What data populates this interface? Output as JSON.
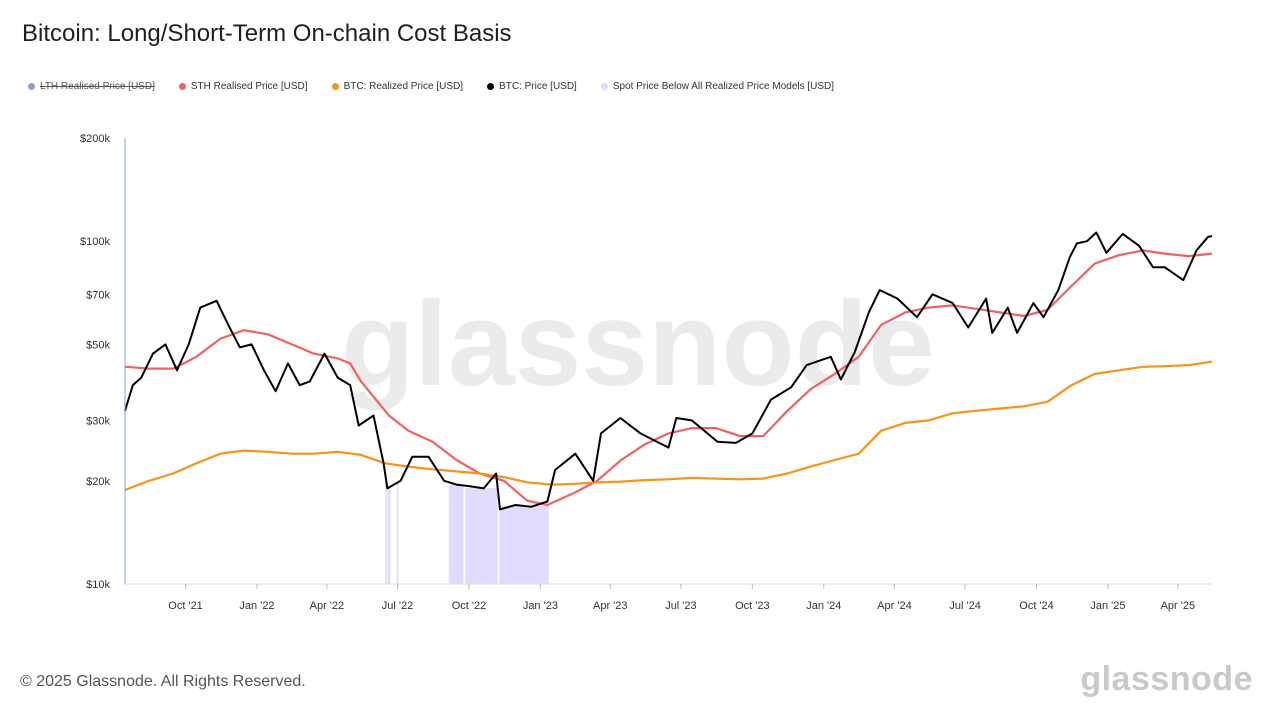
{
  "title": "Bitcoin: Long/Short-Term On-chain Cost Basis",
  "footer": "© 2025 Glassnode. All Rights Reserved.",
  "brand": "glassnode",
  "watermark": "glassnode",
  "legend": [
    {
      "label": "LTH Realised Price [USD]",
      "color": "#8b9ae0",
      "disabled": true
    },
    {
      "label": "STH Realised Price [USD]",
      "color": "#f06262",
      "disabled": false
    },
    {
      "label": "BTC: Realized Price [USD]",
      "color": "#f7931a",
      "disabled": false
    },
    {
      "label": "BTC: Price [USD]",
      "color": "#000000",
      "disabled": false
    },
    {
      "label": "Spot Price Below All Realized Price Models [USD]",
      "color": "#e3dbff",
      "disabled": false
    }
  ],
  "chart_data": {
    "type": "line",
    "yscale": "log",
    "ylim": [
      10000,
      200000
    ],
    "xlim": [
      "2021-07-15",
      "2025-05-15"
    ],
    "y_ticks": [
      {
        "value": 10000,
        "label": "$10k"
      },
      {
        "value": 20000,
        "label": "$20k"
      },
      {
        "value": 30000,
        "label": "$30k"
      },
      {
        "value": 50000,
        "label": "$50k"
      },
      {
        "value": 70000,
        "label": "$70k"
      },
      {
        "value": 100000,
        "label": "$100k"
      },
      {
        "value": 200000,
        "label": "$200k"
      }
    ],
    "x_ticks": [
      {
        "date": "2021-10-01",
        "label": "Oct '21"
      },
      {
        "date": "2022-01-01",
        "label": "Jan '22"
      },
      {
        "date": "2022-04-01",
        "label": "Apr '22"
      },
      {
        "date": "2022-07-01",
        "label": "Jul '22"
      },
      {
        "date": "2022-10-01",
        "label": "Oct '22"
      },
      {
        "date": "2023-01-01",
        "label": "Jan '23"
      },
      {
        "date": "2023-04-01",
        "label": "Apr '23"
      },
      {
        "date": "2023-07-01",
        "label": "Jul '23"
      },
      {
        "date": "2023-10-01",
        "label": "Oct '23"
      },
      {
        "date": "2024-01-01",
        "label": "Jan '24"
      },
      {
        "date": "2024-04-01",
        "label": "Apr '24"
      },
      {
        "date": "2024-07-01",
        "label": "Jul '24"
      },
      {
        "date": "2024-10-01",
        "label": "Oct '24"
      },
      {
        "date": "2025-01-01",
        "label": "Jan '25"
      },
      {
        "date": "2025-04-01",
        "label": "Apr '25"
      }
    ],
    "series": [
      {
        "name": "STH Realised Price [USD]",
        "color": "#f06262",
        "points": [
          [
            "2021-07-15",
            43000
          ],
          [
            "2021-08-15",
            42500
          ],
          [
            "2021-09-15",
            42500
          ],
          [
            "2021-10-15",
            46000
          ],
          [
            "2021-11-15",
            52000
          ],
          [
            "2021-12-15",
            55000
          ],
          [
            "2022-01-15",
            53500
          ],
          [
            "2022-02-15",
            50000
          ],
          [
            "2022-03-15",
            47000
          ],
          [
            "2022-04-15",
            45500
          ],
          [
            "2022-05-01",
            44000
          ],
          [
            "2022-05-15",
            39000
          ],
          [
            "2022-06-01",
            35000
          ],
          [
            "2022-06-20",
            31000
          ],
          [
            "2022-07-15",
            28000
          ],
          [
            "2022-08-15",
            26000
          ],
          [
            "2022-09-15",
            23000
          ],
          [
            "2022-10-15",
            21000
          ],
          [
            "2022-11-15",
            20000
          ],
          [
            "2022-12-15",
            17500
          ],
          [
            "2023-01-10",
            17000
          ],
          [
            "2023-02-15",
            18500
          ],
          [
            "2023-03-15",
            20000
          ],
          [
            "2023-04-15",
            23000
          ],
          [
            "2023-05-15",
            25500
          ],
          [
            "2023-06-15",
            27500
          ],
          [
            "2023-07-15",
            28500
          ],
          [
            "2023-08-15",
            28500
          ],
          [
            "2023-09-15",
            27000
          ],
          [
            "2023-10-15",
            27000
          ],
          [
            "2023-11-15",
            32000
          ],
          [
            "2023-12-15",
            37000
          ],
          [
            "2024-01-15",
            41000
          ],
          [
            "2024-02-15",
            46000
          ],
          [
            "2024-03-15",
            57000
          ],
          [
            "2024-04-15",
            62000
          ],
          [
            "2024-05-15",
            64000
          ],
          [
            "2024-06-15",
            65000
          ],
          [
            "2024-07-15",
            63500
          ],
          [
            "2024-08-15",
            62000
          ],
          [
            "2024-09-15",
            60500
          ],
          [
            "2024-10-15",
            63000
          ],
          [
            "2024-11-15",
            74000
          ],
          [
            "2024-12-15",
            86000
          ],
          [
            "2025-01-15",
            91000
          ],
          [
            "2025-02-15",
            94000
          ],
          [
            "2025-03-15",
            92000
          ],
          [
            "2025-04-15",
            90500
          ],
          [
            "2025-05-15",
            92000
          ]
        ]
      },
      {
        "name": "BTC: Realized Price [USD]",
        "color": "#f7931a",
        "points": [
          [
            "2021-07-15",
            18800
          ],
          [
            "2021-08-15",
            20000
          ],
          [
            "2021-09-15",
            21000
          ],
          [
            "2021-10-15",
            22500
          ],
          [
            "2021-11-15",
            24000
          ],
          [
            "2021-12-15",
            24500
          ],
          [
            "2022-01-15",
            24300
          ],
          [
            "2022-02-15",
            24000
          ],
          [
            "2022-03-15",
            24000
          ],
          [
            "2022-04-15",
            24300
          ],
          [
            "2022-05-15",
            23800
          ],
          [
            "2022-06-15",
            22500
          ],
          [
            "2022-07-15",
            22000
          ],
          [
            "2022-08-15",
            21600
          ],
          [
            "2022-09-15",
            21300
          ],
          [
            "2022-10-15",
            21000
          ],
          [
            "2022-11-15",
            20500
          ],
          [
            "2022-12-15",
            19800
          ],
          [
            "2023-01-15",
            19500
          ],
          [
            "2023-02-15",
            19600
          ],
          [
            "2023-03-15",
            19800
          ],
          [
            "2023-04-15",
            19900
          ],
          [
            "2023-05-15",
            20100
          ],
          [
            "2023-06-15",
            20200
          ],
          [
            "2023-07-15",
            20400
          ],
          [
            "2023-08-15",
            20300
          ],
          [
            "2023-09-15",
            20200
          ],
          [
            "2023-10-15",
            20300
          ],
          [
            "2023-11-15",
            21000
          ],
          [
            "2023-12-15",
            22000
          ],
          [
            "2024-01-15",
            23000
          ],
          [
            "2024-02-15",
            24000
          ],
          [
            "2024-03-15",
            28000
          ],
          [
            "2024-04-15",
            29500
          ],
          [
            "2024-05-15",
            30000
          ],
          [
            "2024-06-15",
            31500
          ],
          [
            "2024-07-15",
            32000
          ],
          [
            "2024-08-15",
            32500
          ],
          [
            "2024-09-15",
            33000
          ],
          [
            "2024-10-15",
            34000
          ],
          [
            "2024-11-15",
            38000
          ],
          [
            "2024-12-15",
            41000
          ],
          [
            "2025-01-15",
            42000
          ],
          [
            "2025-02-15",
            43000
          ],
          [
            "2025-03-15",
            43200
          ],
          [
            "2025-04-15",
            43500
          ],
          [
            "2025-05-15",
            44500
          ]
        ]
      },
      {
        "name": "BTC: Price [USD]",
        "color": "#000000",
        "points": [
          [
            "2021-07-15",
            32000
          ],
          [
            "2021-07-25",
            38000
          ],
          [
            "2021-08-05",
            40000
          ],
          [
            "2021-08-20",
            47000
          ],
          [
            "2021-09-05",
            50000
          ],
          [
            "2021-09-20",
            42000
          ],
          [
            "2021-10-05",
            50000
          ],
          [
            "2021-10-20",
            64000
          ],
          [
            "2021-11-10",
            67000
          ],
          [
            "2021-11-25",
            57000
          ],
          [
            "2021-12-10",
            49000
          ],
          [
            "2021-12-25",
            50000
          ],
          [
            "2022-01-10",
            42000
          ],
          [
            "2022-01-25",
            36500
          ],
          [
            "2022-02-10",
            44000
          ],
          [
            "2022-02-25",
            38000
          ],
          [
            "2022-03-10",
            39000
          ],
          [
            "2022-03-29",
            47000
          ],
          [
            "2022-04-15",
            40000
          ],
          [
            "2022-05-01",
            38000
          ],
          [
            "2022-05-12",
            29000
          ],
          [
            "2022-05-31",
            31000
          ],
          [
            "2022-06-13",
            22500
          ],
          [
            "2022-06-18",
            19000
          ],
          [
            "2022-07-05",
            20000
          ],
          [
            "2022-07-20",
            23500
          ],
          [
            "2022-08-10",
            23500
          ],
          [
            "2022-08-30",
            20000
          ],
          [
            "2022-09-15",
            19500
          ],
          [
            "2022-10-01",
            19300
          ],
          [
            "2022-10-20",
            19000
          ],
          [
            "2022-11-05",
            21000
          ],
          [
            "2022-11-10",
            16500
          ],
          [
            "2022-11-30",
            17000
          ],
          [
            "2022-12-20",
            16800
          ],
          [
            "2023-01-10",
            17400
          ],
          [
            "2023-01-20",
            21500
          ],
          [
            "2023-02-15",
            24000
          ],
          [
            "2023-03-10",
            20000
          ],
          [
            "2023-03-20",
            27500
          ],
          [
            "2023-04-14",
            30500
          ],
          [
            "2023-05-10",
            27500
          ],
          [
            "2023-06-15",
            25000
          ],
          [
            "2023-06-25",
            30500
          ],
          [
            "2023-07-15",
            30000
          ],
          [
            "2023-08-17",
            26000
          ],
          [
            "2023-09-10",
            25800
          ],
          [
            "2023-10-01",
            27500
          ],
          [
            "2023-10-25",
            34500
          ],
          [
            "2023-11-20",
            37500
          ],
          [
            "2023-12-10",
            43500
          ],
          [
            "2024-01-10",
            46000
          ],
          [
            "2024-01-23",
            39500
          ],
          [
            "2024-02-10",
            47500
          ],
          [
            "2024-02-28",
            62000
          ],
          [
            "2024-03-13",
            72000
          ],
          [
            "2024-04-05",
            68000
          ],
          [
            "2024-04-30",
            60000
          ],
          [
            "2024-05-20",
            70000
          ],
          [
            "2024-06-15",
            66000
          ],
          [
            "2024-07-05",
            56000
          ],
          [
            "2024-07-28",
            68000
          ],
          [
            "2024-08-05",
            54000
          ],
          [
            "2024-08-25",
            64000
          ],
          [
            "2024-09-06",
            54000
          ],
          [
            "2024-09-27",
            66000
          ],
          [
            "2024-10-10",
            60000
          ],
          [
            "2024-10-29",
            72000
          ],
          [
            "2024-11-13",
            90000
          ],
          [
            "2024-11-22",
            98500
          ],
          [
            "2024-12-05",
            100000
          ],
          [
            "2024-12-17",
            106000
          ],
          [
            "2024-12-30",
            92500
          ],
          [
            "2025-01-20",
            105000
          ],
          [
            "2025-02-10",
            97000
          ],
          [
            "2025-02-28",
            84000
          ],
          [
            "2025-03-15",
            84000
          ],
          [
            "2025-04-08",
            77000
          ],
          [
            "2025-04-25",
            94000
          ],
          [
            "2025-05-10",
            103000
          ],
          [
            "2025-05-15",
            103500
          ]
        ]
      }
    ],
    "bands": {
      "name": "Spot Price Below All Realized Price Models [USD]",
      "color": "#e3dbff",
      "intervals": [
        [
          "2022-06-15",
          "2022-06-17"
        ],
        [
          "2022-06-18",
          "2022-06-22"
        ],
        [
          "2022-06-30",
          "2022-07-02"
        ],
        [
          "2022-09-05",
          "2022-09-24"
        ],
        [
          "2022-09-26",
          "2022-11-07"
        ],
        [
          "2022-11-09",
          "2023-01-12"
        ]
      ]
    }
  }
}
